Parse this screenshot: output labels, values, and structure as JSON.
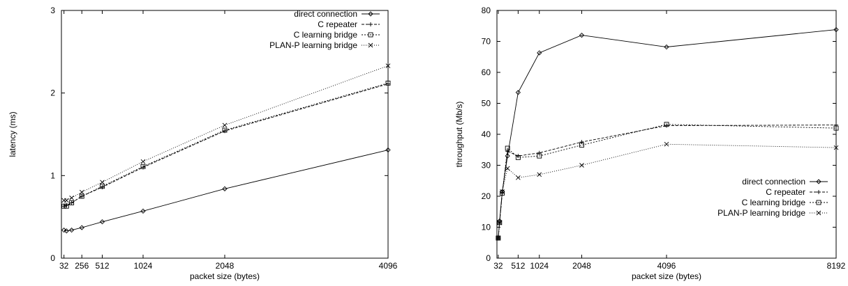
{
  "chart_data": [
    {
      "type": "line",
      "xlabel": "packet size (bytes)",
      "ylabel": "latency (ms)",
      "xlim": [
        0,
        4096
      ],
      "ylim": [
        0,
        3
      ],
      "xticks": [
        "32",
        "256",
        "512",
        "1024",
        "2048",
        "4096"
      ],
      "xtick_values": [
        32,
        256,
        512,
        1024,
        2048,
        4096
      ],
      "yticks": [
        "0",
        "1",
        "2",
        "3"
      ],
      "ytick_values": [
        0,
        1,
        2,
        3
      ],
      "grid": false,
      "legend_position": "top-right",
      "series": [
        {
          "name": "direct connection",
          "marker": "diamond",
          "dash": "solid",
          "x": [
            32,
            64,
            128,
            256,
            512,
            1024,
            2048,
            4096
          ],
          "y": [
            0.34,
            0.33,
            0.34,
            0.37,
            0.44,
            0.57,
            0.84,
            1.31
          ]
        },
        {
          "name": "C repeater",
          "marker": "plus",
          "dash": "dashed",
          "x": [
            32,
            64,
            128,
            256,
            512,
            1024,
            2048,
            4096
          ],
          "y": [
            0.63,
            0.64,
            0.67,
            0.75,
            0.86,
            1.1,
            1.54,
            2.11
          ]
        },
        {
          "name": "C learning bridge",
          "marker": "square",
          "dash": "dotted",
          "x": [
            32,
            64,
            128,
            256,
            512,
            1024,
            2048,
            4096
          ],
          "y": [
            0.63,
            0.63,
            0.67,
            0.75,
            0.87,
            1.11,
            1.55,
            2.12
          ]
        },
        {
          "name": "PLAN-P learning bridge",
          "marker": "cross",
          "dash": "finedot",
          "x": [
            32,
            64,
            128,
            256,
            512,
            1024,
            2048,
            4096
          ],
          "y": [
            0.7,
            0.7,
            0.73,
            0.8,
            0.92,
            1.17,
            1.61,
            2.33
          ]
        }
      ]
    },
    {
      "type": "line",
      "xlabel": "packet size (bytes)",
      "ylabel": "throughput (Mb/s)",
      "xlim": [
        0,
        8192
      ],
      "ylim": [
        0,
        80
      ],
      "xticks": [
        "32",
        "512",
        "1024",
        "2048",
        "4096",
        "8192"
      ],
      "xtick_values": [
        32,
        512,
        1024,
        2048,
        4096,
        8192
      ],
      "yticks": [
        "0",
        "10",
        "20",
        "30",
        "40",
        "50",
        "60",
        "70",
        "80"
      ],
      "ytick_values": [
        0,
        10,
        20,
        30,
        40,
        50,
        60,
        70,
        80
      ],
      "grid": false,
      "legend_position": "lower-right",
      "series": [
        {
          "name": "direct connection",
          "marker": "diamond",
          "dash": "solid",
          "x": [
            32,
            64,
            128,
            256,
            512,
            1024,
            2048,
            4096,
            8192
          ],
          "y": [
            6.5,
            12,
            21.5,
            33,
            53.5,
            66.3,
            72,
            68.2,
            73.8
          ]
        },
        {
          "name": "C repeater",
          "marker": "plus",
          "dash": "dashed",
          "x": [
            32,
            64,
            128,
            256,
            512,
            1024,
            2048,
            4096,
            8192
          ],
          "y": [
            6.5,
            11.5,
            21,
            34.5,
            33,
            34,
            37.5,
            42.8,
            43
          ]
        },
        {
          "name": "C learning bridge",
          "marker": "square",
          "dash": "dotted",
          "x": [
            32,
            64,
            128,
            256,
            512,
            1024,
            2048,
            4096,
            8192
          ],
          "y": [
            6.5,
            11.5,
            21,
            35.5,
            32.5,
            33,
            36.5,
            43.2,
            42
          ]
        },
        {
          "name": "PLAN-P learning bridge",
          "marker": "cross",
          "dash": "finedot",
          "x": [
            32,
            64,
            128,
            256,
            512,
            1024,
            2048,
            4096,
            8192
          ],
          "y": [
            6.5,
            11.5,
            21.5,
            29,
            26,
            27,
            30,
            36.8,
            35.7
          ]
        }
      ]
    }
  ]
}
